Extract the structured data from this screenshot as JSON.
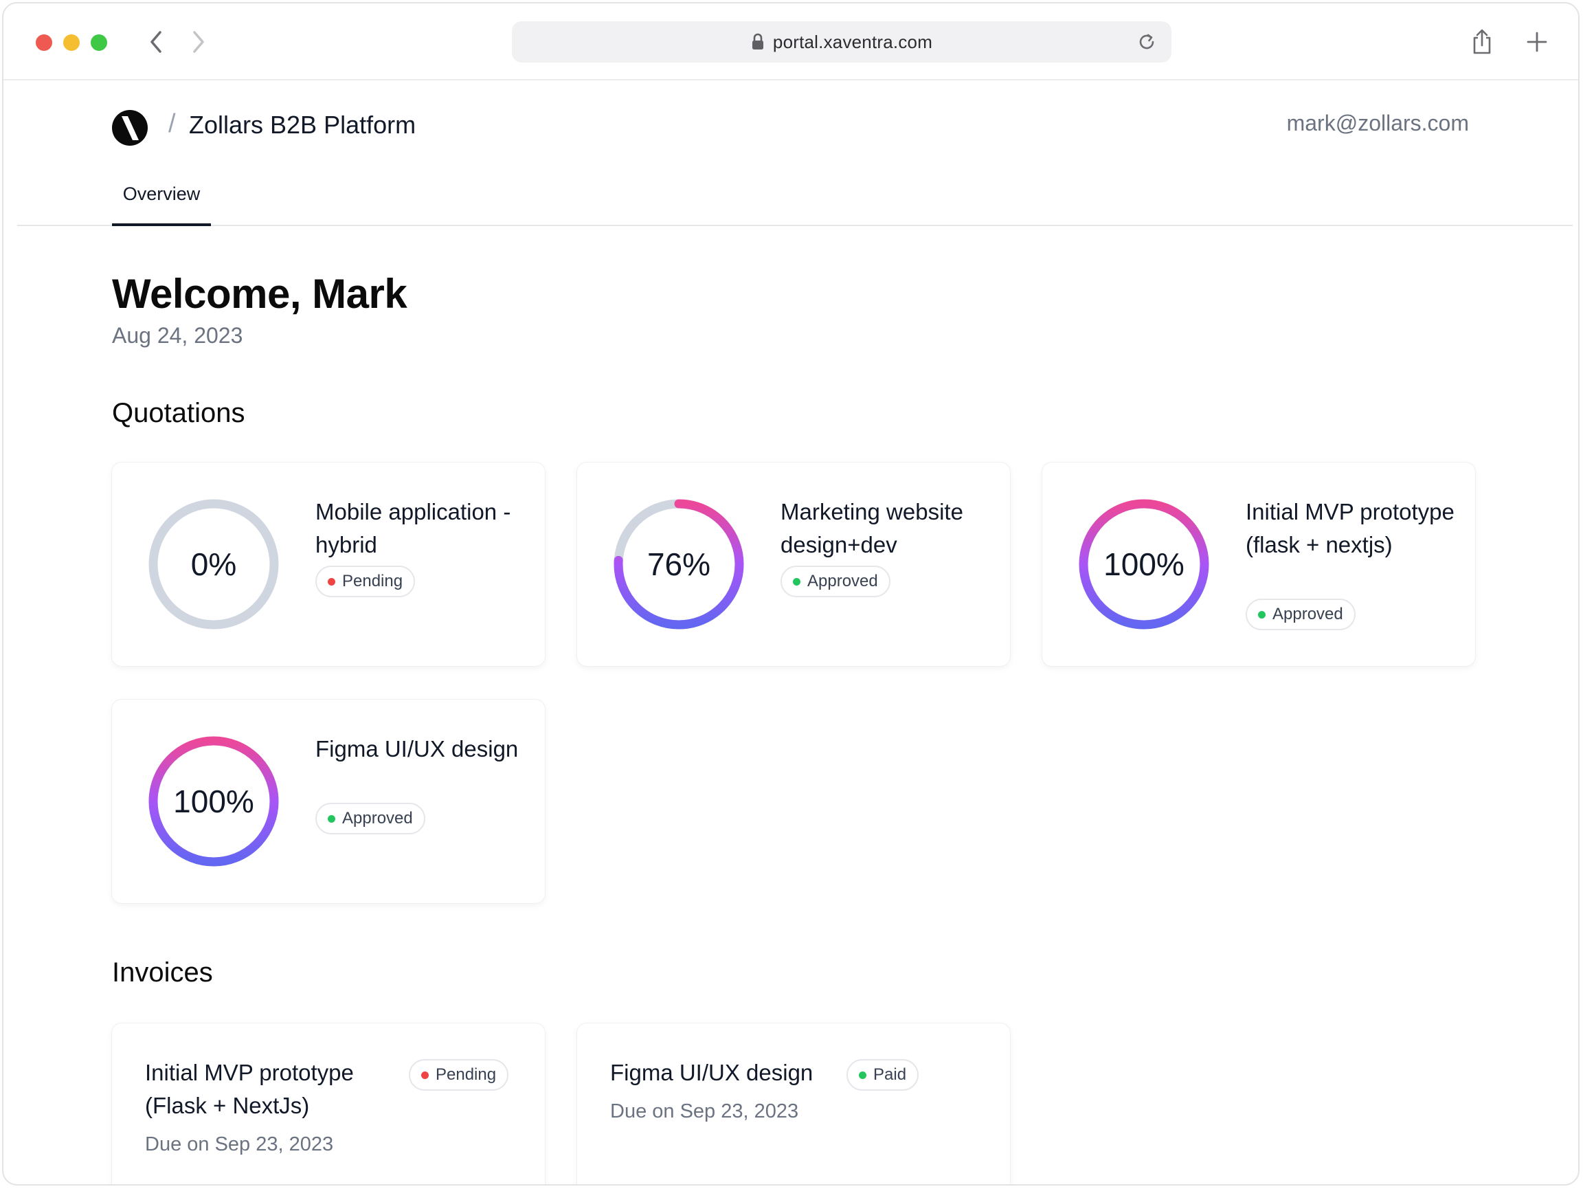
{
  "browser": {
    "url": "portal.xaventra.com",
    "traffic_colors": [
      "#ee5a52",
      "#f5bd30",
      "#3ec846"
    ]
  },
  "header": {
    "breadcrumb_separator": "/",
    "product_name": "Zollars B2B Platform",
    "user_email": "mark@zollars.com",
    "tabs": [
      {
        "label": "Overview",
        "active": true
      }
    ]
  },
  "welcome": {
    "heading": "Welcome, Mark",
    "date": "Aug 24, 2023"
  },
  "quotations": {
    "title": "Quotations",
    "items": [
      {
        "progress_label": "0%",
        "progress": 0,
        "title": "Mobile application - hybrid",
        "status": "Pending",
        "status_color": "#ef4444"
      },
      {
        "progress_label": "76%",
        "progress": 76,
        "title": "Marketing website design+dev",
        "status": "Approved",
        "status_color": "#22c55e"
      },
      {
        "progress_label": "100%",
        "progress": 100,
        "title": "Initial MVP prototype (flask + nextjs)",
        "status": "Approved",
        "status_color": "#22c55e"
      },
      {
        "progress_label": "100%",
        "progress": 100,
        "title": "Figma UI/UX design",
        "status": "Approved",
        "status_color": "#22c55e"
      }
    ]
  },
  "invoices": {
    "title": "Invoices",
    "items": [
      {
        "title": "Initial MVP prototype (Flask + NextJs)",
        "status": "Pending",
        "status_color": "#ef4444",
        "due": "Due on Sep 23, 2023"
      },
      {
        "title": "Figma UI/UX design",
        "status": "Paid",
        "status_color": "#22c55e",
        "due": "Due on Sep 23, 2023"
      }
    ]
  },
  "colors": {
    "ring_track": "#cfd6e0",
    "gradient_start": "#6366f1",
    "gradient_mid": "#a855f7",
    "gradient_end": "#ec4899"
  }
}
